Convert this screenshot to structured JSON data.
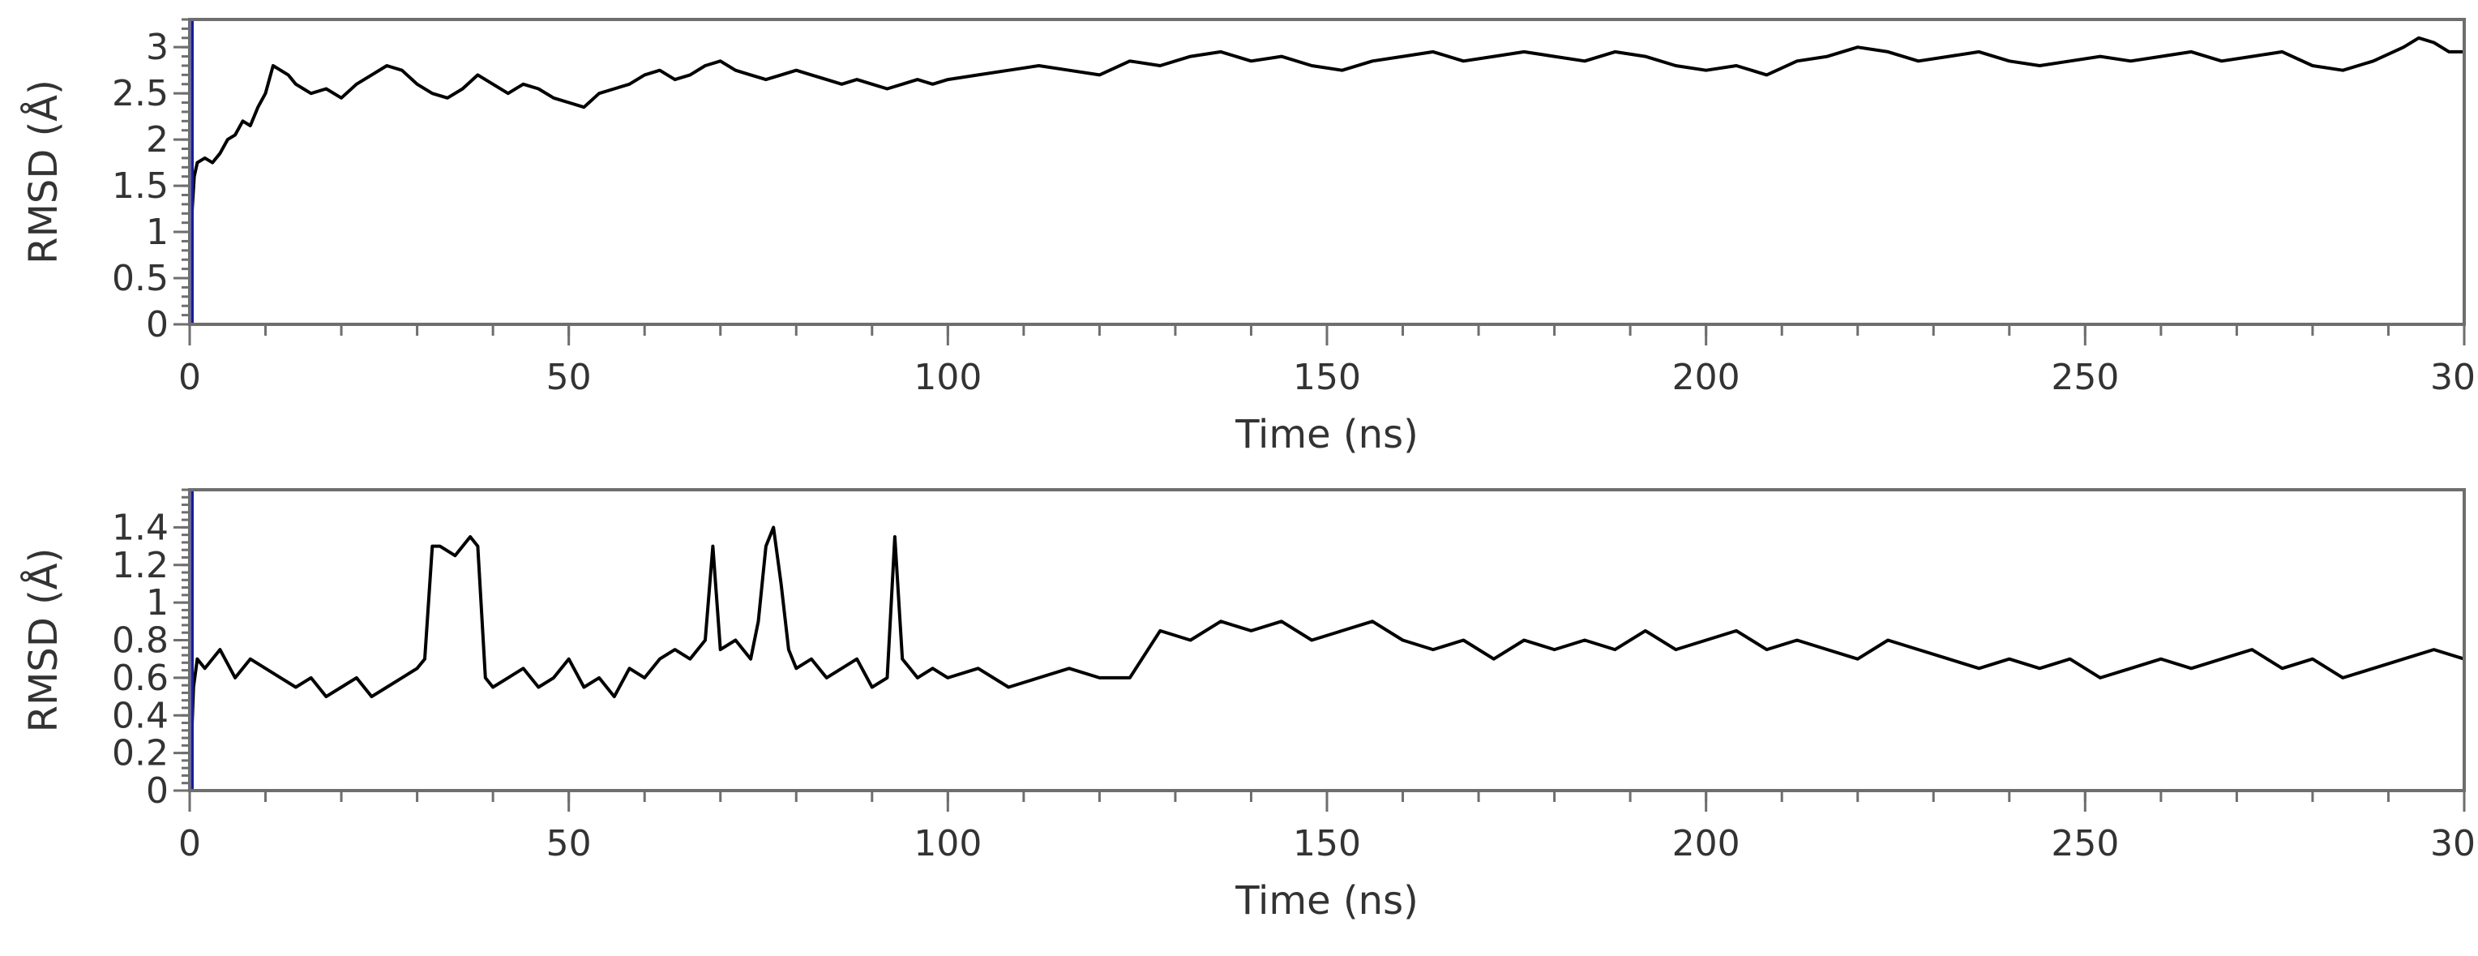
{
  "colors": {
    "series": "#000000",
    "marker_line": "#1a1aa8",
    "frame": "#6e6e6e",
    "text": "#333333"
  },
  "chart_data": [
    {
      "type": "line",
      "title": "",
      "xlabel": "Time (ns)",
      "ylabel": "RMSD (Å)",
      "xlim": [
        0,
        300
      ],
      "ylim": [
        0,
        3.3
      ],
      "x_ticks": [
        0,
        50,
        100,
        150,
        200,
        250,
        300
      ],
      "x_tick_labels": [
        "0",
        "50",
        "100",
        "150",
        "200",
        "250",
        "300"
      ],
      "y_ticks": [
        0,
        0.5,
        1,
        1.5,
        2,
        2.5,
        3
      ],
      "y_tick_labels": [
        "0",
        "0.5",
        "1",
        "1.5",
        "2",
        "2.5",
        "3"
      ],
      "vertical_marker_x": 0,
      "grid": false,
      "series": [
        {
          "x": [
            0,
            0.3,
            0.6,
            1,
            2,
            3,
            4,
            5,
            6,
            7,
            8,
            9,
            10,
            11,
            12,
            13,
            14,
            15,
            16,
            18,
            20,
            22,
            24,
            26,
            28,
            30,
            32,
            34,
            36,
            38,
            40,
            42,
            44,
            46,
            48,
            50,
            52,
            54,
            56,
            58,
            60,
            62,
            64,
            66,
            68,
            70,
            72,
            74,
            76,
            78,
            80,
            82,
            84,
            86,
            88,
            90,
            92,
            94,
            96,
            98,
            100,
            104,
            108,
            112,
            116,
            120,
            124,
            128,
            132,
            136,
            140,
            144,
            148,
            152,
            156,
            160,
            164,
            168,
            172,
            176,
            180,
            184,
            188,
            192,
            196,
            200,
            204,
            208,
            212,
            216,
            220,
            224,
            228,
            232,
            236,
            240,
            244,
            248,
            252,
            256,
            260,
            264,
            268,
            272,
            276,
            280,
            284,
            288,
            292,
            294,
            296,
            298,
            300
          ],
          "values": [
            0.0,
            1.2,
            1.6,
            1.75,
            1.8,
            1.75,
            1.85,
            2.0,
            2.05,
            2.2,
            2.15,
            2.35,
            2.5,
            2.8,
            2.75,
            2.7,
            2.6,
            2.55,
            2.5,
            2.55,
            2.45,
            2.6,
            2.7,
            2.8,
            2.75,
            2.6,
            2.5,
            2.45,
            2.55,
            2.7,
            2.6,
            2.5,
            2.6,
            2.55,
            2.45,
            2.4,
            2.35,
            2.5,
            2.55,
            2.6,
            2.7,
            2.75,
            2.65,
            2.7,
            2.8,
            2.85,
            2.75,
            2.7,
            2.65,
            2.7,
            2.75,
            2.7,
            2.65,
            2.6,
            2.65,
            2.6,
            2.55,
            2.6,
            2.65,
            2.6,
            2.65,
            2.7,
            2.75,
            2.8,
            2.75,
            2.7,
            2.85,
            2.8,
            2.9,
            2.95,
            2.85,
            2.9,
            2.8,
            2.75,
            2.85,
            2.9,
            2.95,
            2.85,
            2.9,
            2.95,
            2.9,
            2.85,
            2.95,
            2.9,
            2.8,
            2.75,
            2.8,
            2.7,
            2.85,
            2.9,
            3.0,
            2.95,
            2.85,
            2.9,
            2.95,
            2.85,
            2.8,
            2.85,
            2.9,
            2.85,
            2.9,
            2.95,
            2.85,
            2.9,
            2.95,
            2.8,
            2.75,
            2.85,
            3.0,
            3.1,
            3.05,
            2.95,
            2.95
          ]
        }
      ]
    },
    {
      "type": "line",
      "title": "",
      "xlabel": "Time (ns)",
      "ylabel": "RMSD (Å)",
      "xlim": [
        0,
        300
      ],
      "ylim": [
        0,
        1.6
      ],
      "x_ticks": [
        0,
        50,
        100,
        150,
        200,
        250,
        300
      ],
      "x_tick_labels": [
        "0",
        "50",
        "100",
        "150",
        "200",
        "250",
        "300"
      ],
      "y_ticks": [
        0,
        0.2,
        0.4,
        0.6,
        0.8,
        1,
        1.2,
        1.4
      ],
      "y_tick_labels": [
        "0",
        "0.2",
        "0.4",
        "0.6",
        "0.8",
        "1",
        "1.2",
        "1.4"
      ],
      "vertical_marker_x": 0,
      "grid": false,
      "series": [
        {
          "x": [
            0,
            0.5,
            1,
            2,
            4,
            6,
            8,
            10,
            12,
            14,
            16,
            18,
            20,
            22,
            24,
            26,
            28,
            30,
            31,
            32,
            33,
            35,
            37,
            38,
            39,
            40,
            42,
            44,
            46,
            48,
            50,
            52,
            54,
            56,
            58,
            60,
            62,
            64,
            66,
            68,
            69,
            70,
            72,
            74,
            75,
            76,
            77,
            78,
            79,
            80,
            82,
            84,
            86,
            88,
            90,
            92,
            93,
            94,
            95,
            96,
            98,
            100,
            104,
            108,
            112,
            116,
            120,
            124,
            128,
            132,
            136,
            140,
            144,
            148,
            152,
            156,
            160,
            164,
            168,
            172,
            176,
            180,
            184,
            188,
            192,
            196,
            200,
            204,
            208,
            212,
            216,
            220,
            224,
            228,
            232,
            236,
            240,
            244,
            248,
            252,
            256,
            260,
            264,
            268,
            272,
            276,
            280,
            284,
            288,
            292,
            296,
            300
          ],
          "values": [
            0.0,
            0.55,
            0.7,
            0.65,
            0.75,
            0.6,
            0.7,
            0.65,
            0.6,
            0.55,
            0.6,
            0.5,
            0.55,
            0.6,
            0.5,
            0.55,
            0.6,
            0.65,
            0.7,
            1.3,
            1.3,
            1.25,
            1.35,
            1.3,
            0.6,
            0.55,
            0.6,
            0.65,
            0.55,
            0.6,
            0.7,
            0.55,
            0.6,
            0.5,
            0.65,
            0.6,
            0.7,
            0.75,
            0.7,
            0.8,
            1.3,
            0.75,
            0.8,
            0.7,
            0.9,
            1.3,
            1.4,
            1.1,
            0.75,
            0.65,
            0.7,
            0.6,
            0.65,
            0.7,
            0.55,
            0.6,
            1.35,
            0.7,
            0.65,
            0.6,
            0.65,
            0.6,
            0.65,
            0.55,
            0.6,
            0.65,
            0.6,
            0.6,
            0.85,
            0.8,
            0.9,
            0.85,
            0.9,
            0.8,
            0.85,
            0.9,
            0.8,
            0.75,
            0.8,
            0.7,
            0.8,
            0.75,
            0.8,
            0.75,
            0.85,
            0.75,
            0.8,
            0.85,
            0.75,
            0.8,
            0.75,
            0.7,
            0.8,
            0.75,
            0.7,
            0.65,
            0.7,
            0.65,
            0.7,
            0.6,
            0.65,
            0.7,
            0.65,
            0.7,
            0.75,
            0.65,
            0.7,
            0.6,
            0.65,
            0.7,
            0.75,
            0.7
          ]
        }
      ]
    }
  ]
}
